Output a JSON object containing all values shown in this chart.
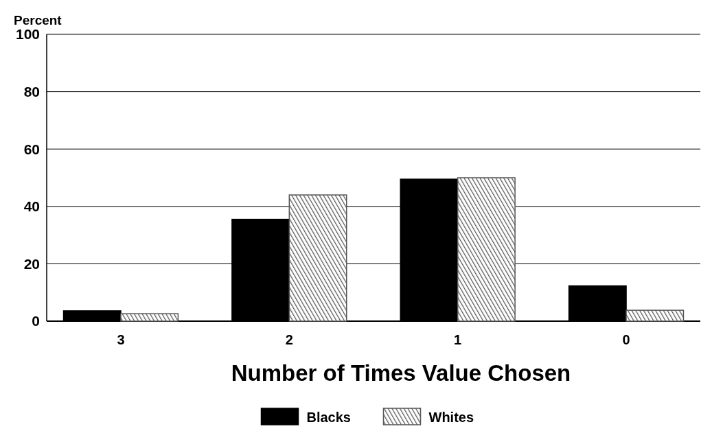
{
  "chart_data": {
    "type": "bar",
    "ylabel": "Percent",
    "xlabel": "Number of Times Value Chosen",
    "categories": [
      "3",
      "2",
      "1",
      "0"
    ],
    "series": [
      {
        "name": "Blacks",
        "color": "#000000",
        "values": [
          3.6,
          35.5,
          49.5,
          12.3
        ]
      },
      {
        "name": "Whites",
        "color": "#555555",
        "values": [
          2.6,
          44,
          50,
          3.8
        ]
      }
    ],
    "ylim": [
      0,
      100
    ],
    "yticks": [
      0,
      20,
      40,
      60,
      80,
      100
    ],
    "grid": "y",
    "legend": "bottom"
  }
}
